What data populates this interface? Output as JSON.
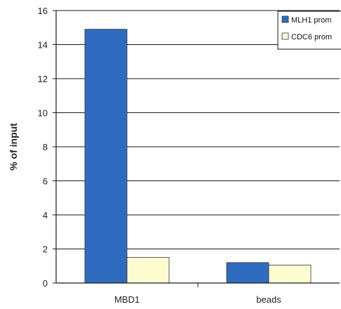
{
  "chart_data": {
    "type": "bar",
    "ylabel": "% of input",
    "xlabel": "",
    "ylim": [
      0,
      16
    ],
    "yticks": [
      "0",
      "2",
      "4",
      "6",
      "8",
      "10",
      "12",
      "14",
      "16"
    ],
    "categories": [
      "MBD1",
      "beads"
    ],
    "series": [
      {
        "name": "MLH1 prom",
        "values": [
          14.9,
          1.2
        ],
        "color": "#2f6cc0"
      },
      {
        "name": "CDC6 prom",
        "values": [
          1.5,
          1.05
        ],
        "color": "#fdfbd0"
      }
    ],
    "grid": true,
    "legend": "top-right"
  }
}
